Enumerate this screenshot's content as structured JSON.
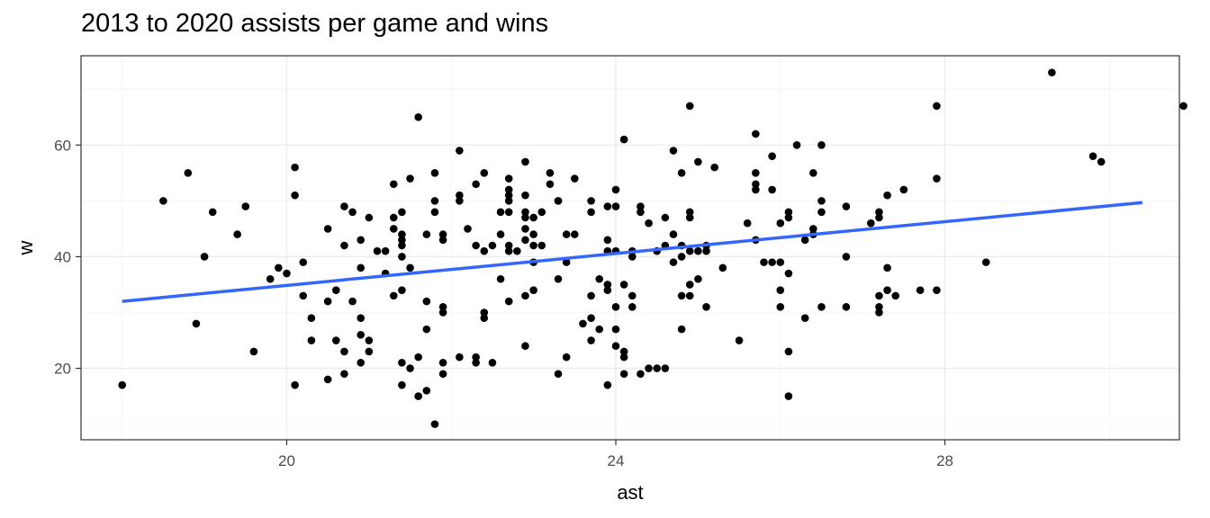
{
  "chart_data": {
    "type": "scatter",
    "title": "2013 to 2020 assists per game and wins",
    "xlabel": "ast",
    "ylabel": "w",
    "xlim": [
      17.5,
      30.85
    ],
    "ylim": [
      7.2,
      76
    ],
    "xticks": [
      20,
      24,
      28
    ],
    "yticks": [
      20,
      40,
      60
    ],
    "grid": true,
    "colors": {
      "points": "#000000",
      "trend": "#3366ff",
      "grid_major": "#ebebeb",
      "grid_minor": "#f5f5f5",
      "panel_border": "#333333"
    },
    "trend_line": {
      "x": [
        18.0,
        30.4
      ],
      "y": [
        32.0,
        49.7
      ]
    },
    "points": [
      [
        18.0,
        17
      ],
      [
        18.5,
        50
      ],
      [
        18.8,
        55
      ],
      [
        18.9,
        28
      ],
      [
        19.0,
        40
      ],
      [
        19.1,
        48
      ],
      [
        19.4,
        44
      ],
      [
        19.5,
        49
      ],
      [
        19.6,
        23
      ],
      [
        19.8,
        36
      ],
      [
        19.9,
        38
      ],
      [
        20.0,
        37
      ],
      [
        20.1,
        56
      ],
      [
        20.1,
        51
      ],
      [
        20.1,
        17
      ],
      [
        20.2,
        39
      ],
      [
        20.2,
        33
      ],
      [
        20.3,
        29
      ],
      [
        20.3,
        25
      ],
      [
        20.5,
        45
      ],
      [
        20.5,
        32
      ],
      [
        20.5,
        18
      ],
      [
        20.6,
        34
      ],
      [
        20.6,
        25
      ],
      [
        20.7,
        42
      ],
      [
        20.7,
        23
      ],
      [
        20.7,
        19
      ],
      [
        20.7,
        49
      ],
      [
        20.8,
        48
      ],
      [
        20.8,
        32
      ],
      [
        20.9,
        43
      ],
      [
        20.9,
        38
      ],
      [
        20.9,
        29
      ],
      [
        20.9,
        26
      ],
      [
        20.9,
        21
      ],
      [
        21.0,
        47
      ],
      [
        21.0,
        25
      ],
      [
        21.0,
        23
      ],
      [
        21.1,
        41
      ],
      [
        21.2,
        37
      ],
      [
        21.2,
        41
      ],
      [
        21.3,
        53
      ],
      [
        21.3,
        47
      ],
      [
        21.3,
        45
      ],
      [
        21.3,
        33
      ],
      [
        21.4,
        48
      ],
      [
        21.4,
        44
      ],
      [
        21.4,
        43
      ],
      [
        21.4,
        42
      ],
      [
        21.4,
        40
      ],
      [
        21.4,
        34
      ],
      [
        21.4,
        21
      ],
      [
        21.4,
        17
      ],
      [
        21.5,
        54
      ],
      [
        21.5,
        38
      ],
      [
        21.5,
        20
      ],
      [
        21.6,
        65
      ],
      [
        21.6,
        22
      ],
      [
        21.6,
        15
      ],
      [
        21.7,
        44
      ],
      [
        21.7,
        32
      ],
      [
        21.7,
        27
      ],
      [
        21.7,
        16
      ],
      [
        21.8,
        10
      ],
      [
        21.8,
        50
      ],
      [
        21.8,
        48
      ],
      [
        21.8,
        55
      ],
      [
        21.9,
        44
      ],
      [
        21.9,
        43
      ],
      [
        21.9,
        31
      ],
      [
        21.9,
        30
      ],
      [
        21.9,
        21
      ],
      [
        21.9,
        19
      ],
      [
        22.1,
        59
      ],
      [
        22.1,
        51
      ],
      [
        22.1,
        50
      ],
      [
        22.1,
        22
      ],
      [
        22.2,
        45
      ],
      [
        22.3,
        53
      ],
      [
        22.3,
        42
      ],
      [
        22.3,
        22
      ],
      [
        22.3,
        21
      ],
      [
        22.4,
        55
      ],
      [
        22.4,
        41
      ],
      [
        22.4,
        30
      ],
      [
        22.4,
        29
      ],
      [
        22.5,
        42
      ],
      [
        22.5,
        21
      ],
      [
        22.6,
        48
      ],
      [
        22.6,
        44
      ],
      [
        22.6,
        36
      ],
      [
        22.7,
        54
      ],
      [
        22.7,
        52
      ],
      [
        22.7,
        51
      ],
      [
        22.7,
        50
      ],
      [
        22.7,
        48
      ],
      [
        22.7,
        42
      ],
      [
        22.7,
        41
      ],
      [
        22.7,
        32
      ],
      [
        22.8,
        41
      ],
      [
        22.9,
        57
      ],
      [
        22.9,
        51
      ],
      [
        22.9,
        48
      ],
      [
        22.9,
        47
      ],
      [
        22.9,
        45
      ],
      [
        22.9,
        43
      ],
      [
        22.9,
        33
      ],
      [
        22.9,
        24
      ],
      [
        23.0,
        47
      ],
      [
        23.0,
        44
      ],
      [
        23.0,
        42
      ],
      [
        23.0,
        39
      ],
      [
        23.0,
        34
      ],
      [
        23.1,
        48
      ],
      [
        23.1,
        42
      ],
      [
        23.2,
        55
      ],
      [
        23.2,
        53
      ],
      [
        23.3,
        50
      ],
      [
        23.3,
        36
      ],
      [
        23.3,
        19
      ],
      [
        23.3,
        50
      ],
      [
        23.4,
        44
      ],
      [
        23.4,
        39
      ],
      [
        23.4,
        22
      ],
      [
        23.5,
        54
      ],
      [
        23.5,
        44
      ],
      [
        23.6,
        28
      ],
      [
        23.7,
        33
      ],
      [
        23.7,
        29
      ],
      [
        23.7,
        50
      ],
      [
        23.7,
        48
      ],
      [
        23.7,
        25
      ],
      [
        23.8,
        36
      ],
      [
        23.8,
        27
      ],
      [
        23.9,
        49
      ],
      [
        23.9,
        43
      ],
      [
        23.9,
        41
      ],
      [
        23.9,
        35
      ],
      [
        23.9,
        34
      ],
      [
        23.9,
        17
      ],
      [
        24.0,
        52
      ],
      [
        24.0,
        49
      ],
      [
        24.0,
        41
      ],
      [
        24.0,
        31
      ],
      [
        24.0,
        27
      ],
      [
        24.0,
        24
      ],
      [
        24.1,
        61
      ],
      [
        24.1,
        35
      ],
      [
        24.1,
        23
      ],
      [
        24.1,
        22
      ],
      [
        24.1,
        19
      ],
      [
        24.2,
        41
      ],
      [
        24.2,
        40
      ],
      [
        24.2,
        33
      ],
      [
        24.2,
        31
      ],
      [
        24.3,
        49
      ],
      [
        24.3,
        19
      ],
      [
        24.3,
        48
      ],
      [
        24.4,
        20
      ],
      [
        24.4,
        46
      ],
      [
        24.5,
        20
      ],
      [
        24.5,
        41
      ],
      [
        24.6,
        20
      ],
      [
        24.6,
        47
      ],
      [
        24.6,
        42
      ],
      [
        24.7,
        59
      ],
      [
        24.7,
        39
      ],
      [
        24.7,
        44
      ],
      [
        24.8,
        42
      ],
      [
        24.8,
        33
      ],
      [
        24.8,
        40
      ],
      [
        24.8,
        27
      ],
      [
        24.8,
        55
      ],
      [
        24.9,
        47
      ],
      [
        24.9,
        48
      ],
      [
        24.9,
        67
      ],
      [
        24.9,
        35
      ],
      [
        24.9,
        33
      ],
      [
        24.9,
        41
      ],
      [
        25.0,
        57
      ],
      [
        25.0,
        36
      ],
      [
        25.0,
        41
      ],
      [
        25.1,
        41
      ],
      [
        25.1,
        42
      ],
      [
        25.1,
        31
      ],
      [
        25.2,
        56
      ],
      [
        25.3,
        38
      ],
      [
        25.5,
        25
      ],
      [
        25.6,
        46
      ],
      [
        25.7,
        55
      ],
      [
        25.7,
        62
      ],
      [
        25.7,
        53
      ],
      [
        25.7,
        52
      ],
      [
        25.7,
        43
      ],
      [
        25.8,
        39
      ],
      [
        25.9,
        39
      ],
      [
        25.9,
        58
      ],
      [
        25.9,
        52
      ],
      [
        26.0,
        39
      ],
      [
        26.0,
        46
      ],
      [
        26.0,
        34
      ],
      [
        26.0,
        31
      ],
      [
        26.1,
        47
      ],
      [
        26.1,
        48
      ],
      [
        26.1,
        37
      ],
      [
        26.1,
        23
      ],
      [
        26.1,
        15
      ],
      [
        26.2,
        60
      ],
      [
        26.3,
        43
      ],
      [
        26.3,
        29
      ],
      [
        26.4,
        45
      ],
      [
        26.4,
        44
      ],
      [
        26.4,
        55
      ],
      [
        26.5,
        60
      ],
      [
        26.5,
        50
      ],
      [
        26.5,
        48
      ],
      [
        26.5,
        31
      ],
      [
        26.8,
        49
      ],
      [
        26.8,
        40
      ],
      [
        26.8,
        31
      ],
      [
        27.1,
        46
      ],
      [
        27.2,
        47
      ],
      [
        27.2,
        48
      ],
      [
        27.2,
        33
      ],
      [
        27.2,
        31
      ],
      [
        27.2,
        30
      ],
      [
        27.3,
        51
      ],
      [
        27.3,
        38
      ],
      [
        27.3,
        34
      ],
      [
        27.4,
        33
      ],
      [
        27.5,
        52
      ],
      [
        27.7,
        34
      ],
      [
        27.9,
        54
      ],
      [
        27.9,
        34
      ],
      [
        27.9,
        67
      ],
      [
        28.5,
        39
      ],
      [
        29.3,
        73
      ],
      [
        29.8,
        58
      ],
      [
        29.9,
        57
      ],
      [
        30.9,
        67
      ]
    ]
  }
}
